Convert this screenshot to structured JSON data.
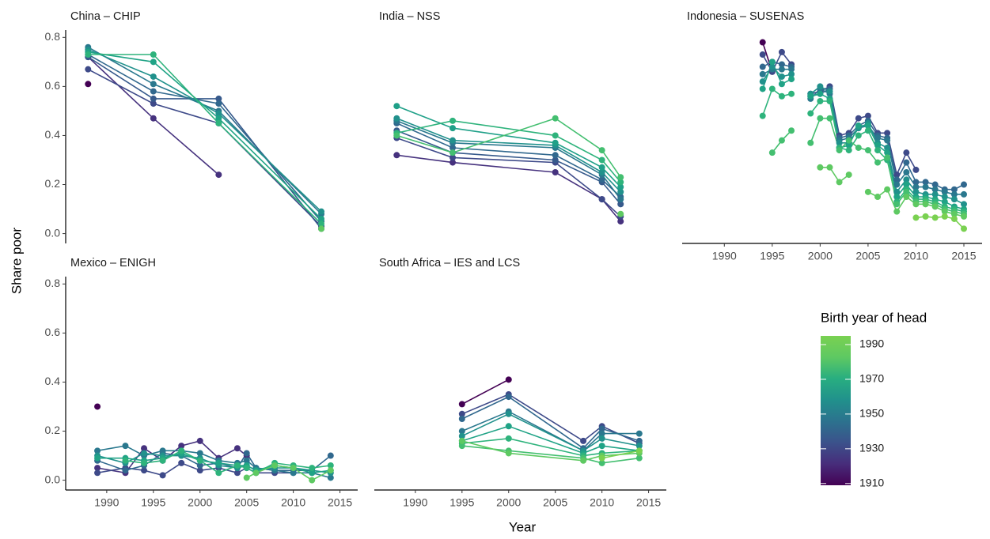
{
  "chart_data": {
    "type": "line",
    "x_label": "Year",
    "y_label": "Share poor",
    "xlim": [
      1985.6,
      2016.9
    ],
    "ylim": [
      -0.04,
      0.83
    ],
    "xticks": [
      1990,
      1995,
      2000,
      2005,
      2010,
      2015
    ],
    "yticks": [
      {
        "value": 0,
        "label": "0.0"
      },
      0.2,
      0.4,
      0.6,
      0.8
    ],
    "panels": [
      {
        "title": "China – CHIP",
        "show_x_axis": false,
        "show_y_axis": true,
        "x": [
          1988,
          1995,
          2002,
          2013
        ],
        "series": [
          {
            "color": "#440154",
            "values": [
              0.61,
              null,
              null,
              null
            ]
          },
          {
            "color": "#46327e",
            "values": [
              0.72,
              0.47,
              0.24,
              null
            ]
          },
          {
            "color": "#3e4a89",
            "values": [
              0.67,
              0.53,
              0.45,
              0.03
            ]
          },
          {
            "color": "#375a8c",
            "values": [
              0.72,
              0.55,
              0.55,
              0.02
            ]
          },
          {
            "color": "#31688e",
            "values": [
              0.73,
              0.58,
              0.53,
              0.05
            ]
          },
          {
            "color": "#2a788e",
            "values": [
              0.76,
              0.61,
              0.5,
              0.08
            ]
          },
          {
            "color": "#21918c",
            "values": [
              0.75,
              0.64,
              0.49,
              0.09
            ]
          },
          {
            "color": "#20a386",
            "values": [
              0.74,
              0.7,
              0.47,
              0.06
            ]
          },
          {
            "color": "#2eb37c",
            "values": [
              0.73,
              0.73,
              0.45,
              0.04
            ]
          },
          {
            "color": "#5ec962",
            "values": [
              null,
              null,
              null,
              0.02
            ]
          }
        ]
      },
      {
        "title": "India – NSS",
        "show_x_axis": false,
        "show_y_axis": false,
        "x": [
          1988,
          1994,
          2005,
          2010,
          2012
        ],
        "series": [
          {
            "color": "#46327e",
            "values": [
              0.32,
              0.29,
              0.25,
              0.14,
              0.05
            ]
          },
          {
            "color": "#3e4a89",
            "values": [
              0.39,
              0.31,
              0.29,
              0.14,
              0.07
            ]
          },
          {
            "color": "#375a8c",
            "values": [
              0.42,
              0.33,
              0.3,
              0.21,
              0.12
            ]
          },
          {
            "color": "#31688e",
            "values": [
              0.45,
              0.35,
              0.32,
              0.22,
              0.15
            ]
          },
          {
            "color": "#2a788e",
            "values": [
              0.46,
              0.37,
              0.35,
              0.24,
              0.14
            ]
          },
          {
            "color": "#21918c",
            "values": [
              0.47,
              0.38,
              0.36,
              0.25,
              0.17
            ]
          },
          {
            "color": "#1fa088",
            "values": [
              0.52,
              0.43,
              0.37,
              0.27,
              0.19
            ]
          },
          {
            "color": "#2eb37c",
            "values": [
              0.41,
              0.46,
              0.4,
              0.3,
              0.21
            ]
          },
          {
            "color": "#44bf70",
            "values": [
              0.4,
              0.33,
              0.47,
              0.34,
              0.23
            ]
          },
          {
            "color": "#5ec962",
            "values": [
              null,
              null,
              null,
              null,
              0.08
            ]
          }
        ]
      },
      {
        "title": "Indonesia – SUSENAS",
        "show_x_axis": true,
        "show_y_axis": false,
        "x": [
          1994,
          1995,
          1996,
          1997,
          1998,
          1999,
          2000,
          2001,
          2002,
          2003,
          2004,
          2005,
          2006,
          2007,
          2008,
          2009,
          2010,
          2011,
          2012,
          2013,
          2014,
          2015
        ],
        "series": [
          {
            "color": "#440154",
            "values": [
              0.78,
              0.66,
              null,
              null,
              null,
              null,
              null,
              null,
              null,
              null,
              null,
              null,
              null,
              null,
              null,
              null,
              null,
              null,
              null,
              null,
              null,
              null
            ]
          },
          {
            "color": "#3e4a89",
            "values": [
              0.73,
              0.66,
              0.74,
              0.69,
              null,
              0.57,
              0.58,
              0.6,
              0.4,
              0.41,
              0.47,
              0.48,
              0.41,
              0.41,
              0.24,
              0.33,
              0.26,
              null,
              null,
              null,
              null,
              null
            ]
          },
          {
            "color": "#31688e",
            "values": [
              0.68,
              0.7,
              0.69,
              0.68,
              null,
              0.56,
              0.57,
              0.59,
              0.39,
              0.4,
              0.44,
              0.46,
              0.4,
              0.39,
              0.22,
              0.29,
              0.21,
              0.21,
              0.2,
              0.18,
              0.18,
              0.2
            ]
          },
          {
            "color": "#2a788e",
            "values": [
              0.65,
              0.67,
              0.67,
              0.67,
              null,
              0.55,
              0.59,
              0.57,
              0.38,
              0.39,
              0.43,
              0.44,
              0.39,
              0.38,
              0.2,
              0.25,
              0.19,
              0.19,
              0.18,
              0.17,
              0.16,
              0.16
            ]
          },
          {
            "color": "#21918c",
            "values": [
              0.62,
              0.68,
              0.64,
              0.65,
              null,
              0.57,
              0.6,
              0.58,
              0.37,
              0.37,
              0.43,
              0.45,
              0.37,
              0.35,
              0.17,
              0.22,
              0.17,
              0.16,
              0.16,
              0.15,
              0.14,
              0.12
            ]
          },
          {
            "color": "#20a386",
            "values": [
              0.59,
              0.7,
              0.61,
              0.63,
              null,
              0.56,
              0.57,
              0.55,
              0.35,
              0.36,
              0.44,
              0.44,
              0.36,
              0.33,
              0.15,
              0.2,
              0.15,
              0.15,
              0.14,
              0.13,
              0.11,
              0.1
            ]
          },
          {
            "color": "#2eb37c",
            "values": [
              0.48,
              0.59,
              0.56,
              0.57,
              null,
              0.49,
              0.54,
              0.54,
              0.35,
              0.34,
              0.4,
              0.42,
              0.34,
              0.3,
              0.13,
              0.18,
              0.14,
              0.14,
              0.13,
              0.11,
              0.1,
              0.09
            ]
          },
          {
            "color": "#44bf70",
            "values": [
              null,
              0.33,
              0.38,
              0.42,
              null,
              0.37,
              0.47,
              0.47,
              0.34,
              0.38,
              0.35,
              0.34,
              0.29,
              0.31,
              0.12,
              0.17,
              0.13,
              0.13,
              0.12,
              0.1,
              0.09,
              0.08
            ]
          },
          {
            "color": "#5ec962",
            "values": [
              null,
              null,
              null,
              null,
              null,
              null,
              0.27,
              0.27,
              0.21,
              0.24,
              null,
              0.17,
              0.15,
              0.18,
              0.09,
              0.15,
              0.12,
              0.12,
              0.11,
              0.09,
              0.08,
              0.07
            ]
          },
          {
            "color": "#7ad151",
            "values": [
              null,
              null,
              null,
              null,
              null,
              null,
              null,
              null,
              null,
              null,
              null,
              null,
              null,
              null,
              null,
              null,
              0.065,
              0.07,
              0.065,
              0.07,
              0.06,
              0.02
            ]
          }
        ]
      },
      {
        "title": "Mexico – ENIGH",
        "show_x_axis": true,
        "show_y_axis": true,
        "x": [
          1989,
          1992,
          1994,
          1996,
          1998,
          2000,
          2002,
          2004,
          2005,
          2006,
          2008,
          2010,
          2012,
          2014
        ],
        "series": [
          {
            "color": "#440154",
            "values": [
              0.3,
              null,
              null,
              null,
              null,
              null,
              null,
              null,
              null,
              null,
              null,
              null,
              null,
              null
            ]
          },
          {
            "color": "#46327e",
            "values": [
              0.05,
              0.03,
              0.13,
              0.08,
              0.14,
              0.16,
              0.09,
              0.13,
              0.1,
              null,
              null,
              null,
              null,
              null
            ]
          },
          {
            "color": "#3e4a89",
            "values": [
              0.03,
              0.05,
              0.04,
              0.02,
              0.07,
              0.04,
              0.05,
              0.03,
              0.05,
              0.03,
              0.03,
              0.03,
              null,
              null
            ]
          },
          {
            "color": "#31688e",
            "values": [
              0.08,
              0.04,
              0.06,
              0.11,
              0.1,
              0.06,
              0.07,
              0.05,
              0.11,
              0.05,
              0.04,
              0.04,
              0.04,
              0.1
            ]
          },
          {
            "color": "#2a788e",
            "values": [
              0.12,
              0.14,
              0.1,
              0.12,
              0.12,
              0.11,
              0.08,
              0.07,
              0.08,
              0.05,
              0.04,
              0.03,
              0.03,
              0.01
            ]
          },
          {
            "color": "#21918c",
            "values": [
              0.1,
              0.07,
              0.11,
              0.1,
              0.1,
              0.09,
              0.06,
              0.05,
              0.06,
              0.04,
              0.05,
              0.05,
              0.04,
              0.03
            ]
          },
          {
            "color": "#20a386",
            "values": [
              0.09,
              0.09,
              0.08,
              0.09,
              0.11,
              0.08,
              0.07,
              0.06,
              0.06,
              0.04,
              0.06,
              0.05,
              0.03,
              0.04
            ]
          },
          {
            "color": "#2eb37c",
            "values": [
              null,
              0.08,
              0.07,
              0.08,
              0.12,
              0.08,
              0.03,
              0.06,
              0.05,
              0.03,
              0.07,
              0.06,
              0.05,
              0.06
            ]
          },
          {
            "color": "#5ec962",
            "values": [
              null,
              null,
              null,
              null,
              null,
              null,
              null,
              null,
              0.01,
              0.03,
              0.06,
              0.05,
              0.0,
              0.04
            ]
          }
        ]
      },
      {
        "title": "South Africa – IES and LCS",
        "show_x_axis": true,
        "show_y_axis": false,
        "x": [
          1995,
          2000,
          2008,
          2010,
          2014
        ],
        "series": [
          {
            "color": "#440154",
            "values": [
              0.31,
              0.41,
              null,
              null,
              null
            ]
          },
          {
            "color": "#3e4a89",
            "values": [
              0.27,
              0.35,
              0.16,
              0.22,
              0.15
            ]
          },
          {
            "color": "#31688e",
            "values": [
              0.25,
              0.34,
              0.13,
              0.21,
              0.16
            ]
          },
          {
            "color": "#2a788e",
            "values": [
              0.2,
              0.28,
              0.12,
              0.19,
              0.19
            ]
          },
          {
            "color": "#21918c",
            "values": [
              0.18,
              0.27,
              0.12,
              0.17,
              0.14
            ]
          },
          {
            "color": "#20a386",
            "values": [
              0.16,
              0.22,
              0.11,
              0.14,
              0.12
            ]
          },
          {
            "color": "#2eb37c",
            "values": [
              0.15,
              0.17,
              0.1,
              0.11,
              0.12
            ]
          },
          {
            "color": "#44bf70",
            "values": [
              0.14,
              0.12,
              0.09,
              0.07,
              0.09
            ]
          },
          {
            "color": "#5ec962",
            "values": [
              0.16,
              0.11,
              0.08,
              0.1,
              0.11
            ]
          },
          {
            "color": "#7ad151",
            "values": [
              null,
              null,
              null,
              0.09,
              0.12
            ]
          }
        ]
      }
    ],
    "colorbar": {
      "title": "Birth year of head",
      "lim": [
        1909,
        1995
      ],
      "ticks": [
        1910,
        1930,
        1950,
        1970,
        1990
      ],
      "colors": [
        "#440154",
        "#472d7b",
        "#3b528b",
        "#2c728e",
        "#21918c",
        "#28ae80",
        "#5ec962",
        "#7ad151"
      ]
    }
  }
}
